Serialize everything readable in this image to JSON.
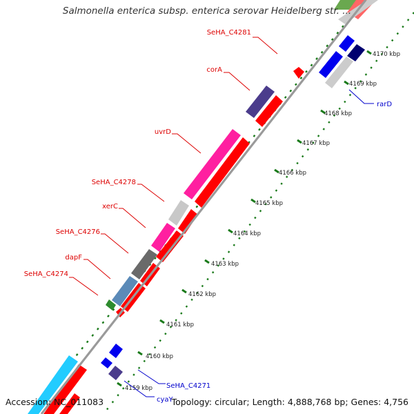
{
  "title": "Salmonella enterica subsp. enterica serovar Heidelberg str. ...",
  "footer": {
    "accession": "Accession: NC_011083",
    "summary": "Topology: circular; Length: 4,888,768 bp; Genes: 4,756"
  },
  "colors": {
    "backbone": "#9a9a9a",
    "tick_green": "#1a7a1a",
    "label_forward": "#dd0000",
    "label_reverse": "#0000cc",
    "cds": "#ff0000",
    "gene_magenta": "#ff1fa0",
    "gene_grey": "#c8c8c8",
    "gene_darkgrey": "#6a6a6a",
    "gene_steelblue": "#5b8ab8",
    "gene_green": "#2e8b2e",
    "gene_slate": "#4b3c8c",
    "gene_blue": "#0000ee",
    "gene_navy": "#000070",
    "gene_cyan": "#22ccff"
  },
  "scale_labels": [
    "4159 kbp",
    "4160 kbp",
    "4161 kbp",
    "4162 kbp",
    "4163 kbp",
    "4164 kbp",
    "4165 kbp",
    "4166 kbp",
    "4167 kbp",
    "4168 kbp",
    "4169 kbp",
    "4170 kbp"
  ],
  "forward_labels": [
    "SeHA_C4281",
    "corA",
    "uvrD",
    "SeHA_C4278",
    "xerC",
    "SeHA_C4276",
    "dapF",
    "SeHA_C4274"
  ],
  "reverse_labels": [
    "rarD",
    "SeHA_C4271",
    "cyaY"
  ]
}
